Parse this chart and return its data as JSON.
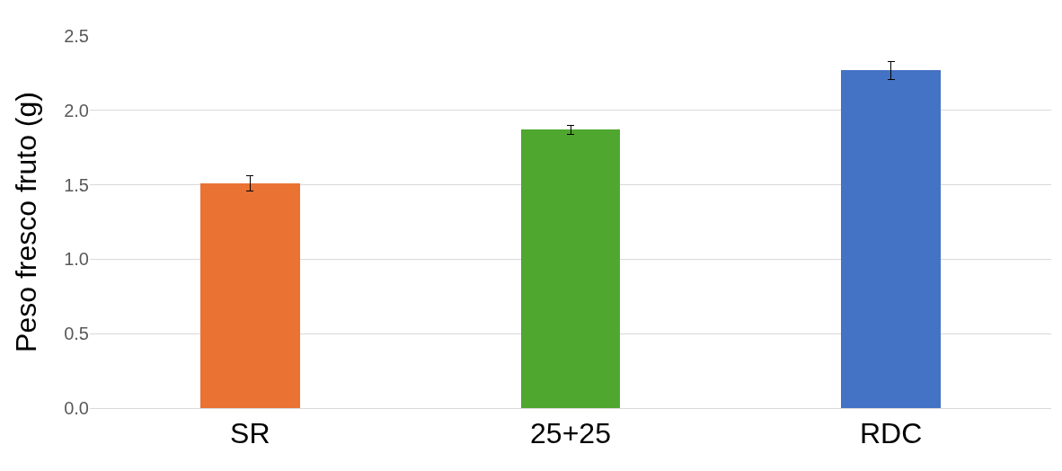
{
  "chart_data": {
    "type": "bar",
    "ylabel": "Peso fresco fruto (g)",
    "categories": [
      "SR",
      "25+25",
      "RDC"
    ],
    "values": [
      1.51,
      1.87,
      2.27
    ],
    "colors": [
      "#ea7233",
      "#4fa72f",
      "#4472c4"
    ],
    "errors": [
      0.05,
      0.03,
      0.06
    ],
    "ylim": [
      0,
      2.5
    ],
    "yticks": [
      {
        "value": 0,
        "label": "0.0"
      },
      {
        "value": 0.5,
        "label": "0.5"
      },
      {
        "value": 1,
        "label": "1.0"
      },
      {
        "value": 1.5,
        "label": "1.5"
      },
      {
        "value": 2,
        "label": "2.0"
      },
      {
        "value": 2.5,
        "label": "2.5"
      }
    ],
    "grid": "y"
  }
}
